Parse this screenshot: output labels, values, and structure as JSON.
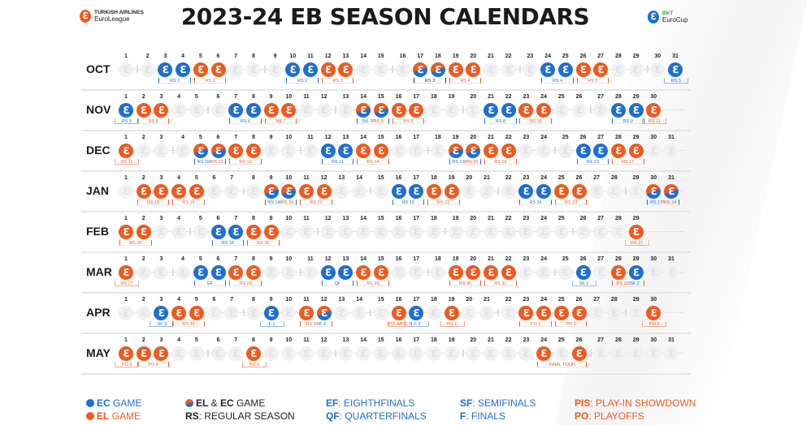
{
  "header": {
    "title": "2023-24 EB SEASON CALENDARS",
    "euroleague_logo": {
      "line1": "TURKISH AIRLINES",
      "line2": "EuroLeague"
    },
    "eurocup_logo": {
      "line1": "BKT",
      "line2": "EuroCup"
    }
  },
  "colors": {
    "ec": "#1f6fd0",
    "el": "#f05a1e",
    "empty": "#f1f1f3"
  },
  "months": [
    {
      "label": "OCT",
      "year": 2023,
      "month": 10,
      "days": 31,
      "blue": [
        3,
        4,
        10,
        11,
        24,
        25,
        31
      ],
      "orange": [
        5,
        6,
        12,
        13,
        19,
        20,
        26,
        27
      ],
      "both": [
        17,
        18
      ],
      "labels": [
        {
          "from": 3,
          "to": 4,
          "parts": [
            {
              "t": "RS 1",
              "c": "b"
            }
          ]
        },
        {
          "from": 5,
          "to": 6,
          "parts": [
            {
              "t": "RS 1",
              "c": "o"
            }
          ]
        },
        {
          "from": 10,
          "to": 11,
          "parts": [
            {
              "t": "RS 2",
              "c": "b"
            }
          ]
        },
        {
          "from": 12,
          "to": 13,
          "parts": [
            {
              "t": "RS 2",
              "c": "o"
            }
          ]
        },
        {
          "from": 17,
          "to": 18,
          "parts": [
            {
              "t": "RS 3",
              "c": "k"
            }
          ]
        },
        {
          "from": 19,
          "to": 20,
          "parts": [
            {
              "t": "RS 4",
              "c": "o"
            }
          ]
        },
        {
          "from": 24,
          "to": 25,
          "parts": [
            {
              "t": "RS 4",
              "c": "b"
            }
          ]
        },
        {
          "from": 26,
          "to": 27,
          "parts": [
            {
              "t": "RS 5",
              "c": "o"
            }
          ]
        },
        {
          "from": 31,
          "to": 31,
          "parts": [
            {
              "t": "RS 5",
              "c": "b"
            }
          ]
        }
      ]
    },
    {
      "label": "NOV",
      "year": 2023,
      "month": 11,
      "days": 30,
      "blue": [
        1,
        7,
        8,
        21,
        22,
        28,
        29
      ],
      "orange": [
        2,
        3,
        9,
        10,
        16,
        17,
        23,
        24,
        30
      ],
      "both": [
        14,
        15
      ],
      "labels": [
        {
          "from": 1,
          "to": 1,
          "parts": [
            {
              "t": "RS 5",
              "c": "b"
            }
          ]
        },
        {
          "from": 2,
          "to": 3,
          "parts": [
            {
              "t": "RS 6",
              "c": "o"
            }
          ]
        },
        {
          "from": 7,
          "to": 8,
          "parts": [
            {
              "t": "RS 6",
              "c": "b"
            }
          ]
        },
        {
          "from": 9,
          "to": 10,
          "parts": [
            {
              "t": "RS 7",
              "c": "o"
            }
          ]
        },
        {
          "from": 14,
          "to": 15,
          "parts": [
            {
              "t": "RS 7",
              "c": "b"
            },
            {
              "t": "RS 8",
              "c": "o"
            }
          ]
        },
        {
          "from": 16,
          "to": 17,
          "parts": [
            {
              "t": "RS 9",
              "c": "o"
            }
          ]
        },
        {
          "from": 21,
          "to": 22,
          "parts": [
            {
              "t": "RS 8",
              "c": "b"
            }
          ]
        },
        {
          "from": 23,
          "to": 24,
          "parts": [
            {
              "t": "RS 10",
              "c": "o"
            }
          ]
        },
        {
          "from": 28,
          "to": 29,
          "parts": [
            {
              "t": "RS 9",
              "c": "b"
            }
          ]
        },
        {
          "from": 30,
          "to": 30,
          "parts": [
            {
              "t": "RS 11",
              "c": "o"
            }
          ]
        }
      ]
    },
    {
      "label": "DEC",
      "year": 2023,
      "month": 12,
      "days": 31,
      "blue": [
        12,
        13,
        26,
        27
      ],
      "orange": [
        1,
        7,
        8,
        14,
        15,
        21,
        22,
        28,
        29
      ],
      "both": [
        5,
        6,
        19,
        20
      ],
      "labels": [
        {
          "from": 1,
          "to": 1,
          "parts": [
            {
              "t": "RS 11",
              "c": "o"
            }
          ]
        },
        {
          "from": 5,
          "to": 6,
          "parts": [
            {
              "t": "RS 10",
              "c": "b"
            },
            {
              "t": "RS 12",
              "c": "o"
            }
          ]
        },
        {
          "from": 7,
          "to": 8,
          "parts": [
            {
              "t": "RS 13",
              "c": "o"
            }
          ]
        },
        {
          "from": 12,
          "to": 13,
          "parts": [
            {
              "t": "RS 11",
              "c": "b"
            }
          ]
        },
        {
          "from": 14,
          "to": 15,
          "parts": [
            {
              "t": "RS 14",
              "c": "o"
            }
          ]
        },
        {
          "from": 19,
          "to": 20,
          "parts": [
            {
              "t": "RS 12",
              "c": "b"
            },
            {
              "t": "RS 15",
              "c": "o"
            }
          ]
        },
        {
          "from": 21,
          "to": 22,
          "parts": [
            {
              "t": "RS 16",
              "c": "o"
            }
          ]
        },
        {
          "from": 26,
          "to": 27,
          "parts": [
            {
              "t": "RS 13",
              "c": "b"
            }
          ]
        },
        {
          "from": 28,
          "to": 29,
          "parts": [
            {
              "t": "RS 17",
              "c": "o"
            }
          ]
        }
      ]
    },
    {
      "label": "JAN",
      "year": 2024,
      "month": 1,
      "days": 31,
      "blue": [
        16,
        17,
        23,
        24
      ],
      "orange": [
        2,
        3,
        4,
        5,
        11,
        12,
        18,
        19,
        25,
        26
      ],
      "both": [
        9,
        10,
        30,
        31
      ],
      "labels": [
        {
          "from": 2,
          "to": 3,
          "parts": [
            {
              "t": "RS 18",
              "c": "o"
            }
          ]
        },
        {
          "from": 4,
          "to": 5,
          "parts": [
            {
              "t": "RS 19",
              "c": "o"
            }
          ]
        },
        {
          "from": 9,
          "to": 10,
          "parts": [
            {
              "t": "RS 14",
              "c": "b"
            },
            {
              "t": "RS 20",
              "c": "o"
            }
          ]
        },
        {
          "from": 11,
          "to": 12,
          "parts": [
            {
              "t": "RS 21",
              "c": "o"
            }
          ]
        },
        {
          "from": 16,
          "to": 17,
          "parts": [
            {
              "t": "RS 15",
              "c": "b"
            }
          ]
        },
        {
          "from": 18,
          "to": 19,
          "parts": [
            {
              "t": "RS 22",
              "c": "o"
            }
          ]
        },
        {
          "from": 23,
          "to": 24,
          "parts": [
            {
              "t": "RS 16",
              "c": "b"
            }
          ]
        },
        {
          "from": 25,
          "to": 26,
          "parts": [
            {
              "t": "RS 23",
              "c": "o"
            }
          ]
        },
        {
          "from": 30,
          "to": 31,
          "parts": [
            {
              "t": "RS 17",
              "c": "b"
            },
            {
              "t": "RS 24",
              "c": "o"
            }
          ]
        }
      ]
    },
    {
      "label": "FEB",
      "year": 2024,
      "month": 2,
      "days": 29,
      "blue": [
        6,
        7
      ],
      "orange": [
        1,
        2,
        8,
        9,
        29
      ],
      "both": [],
      "labels": [
        {
          "from": 1,
          "to": 2,
          "parts": [
            {
              "t": "RS 25",
              "c": "o"
            }
          ]
        },
        {
          "from": 6,
          "to": 7,
          "parts": [
            {
              "t": "RS 18",
              "c": "b"
            }
          ]
        },
        {
          "from": 8,
          "to": 9,
          "parts": [
            {
              "t": "RS 26",
              "c": "o"
            }
          ]
        },
        {
          "from": 29,
          "to": 29,
          "parts": [
            {
              "t": "RS 27",
              "c": "o"
            }
          ]
        }
      ]
    },
    {
      "label": "MAR",
      "year": 2024,
      "month": 3,
      "days": 31,
      "blue": [
        5,
        6,
        12,
        13,
        26,
        29
      ],
      "orange": [
        1,
        7,
        8,
        14,
        15,
        19,
        20,
        21,
        22,
        28
      ],
      "both": [],
      "labels": [
        {
          "from": 1,
          "to": 1,
          "parts": [
            {
              "t": "RS 27",
              "c": "o"
            }
          ]
        },
        {
          "from": 5,
          "to": 6,
          "parts": [
            {
              "t": "EF",
              "c": "b"
            }
          ]
        },
        {
          "from": 7,
          "to": 8,
          "parts": [
            {
              "t": "RS 28",
              "c": "o"
            }
          ]
        },
        {
          "from": 12,
          "to": 13,
          "parts": [
            {
              "t": "QF",
              "c": "b"
            }
          ]
        },
        {
          "from": 14,
          "to": 15,
          "parts": [
            {
              "t": "RS 29",
              "c": "o"
            }
          ]
        },
        {
          "from": 19,
          "to": 20,
          "parts": [
            {
              "t": "RS 30",
              "c": "o"
            }
          ]
        },
        {
          "from": 21,
          "to": 22,
          "parts": [
            {
              "t": "RS 31",
              "c": "o"
            }
          ]
        },
        {
          "from": 26,
          "to": 26,
          "parts": [
            {
              "t": "SF 1",
              "c": "b"
            }
          ]
        },
        {
          "from": 28,
          "to": 29,
          "parts": [
            {
              "t": "RS 32",
              "c": "o"
            },
            {
              "t": "SF 2",
              "c": "b"
            }
          ]
        }
      ]
    },
    {
      "label": "APR",
      "year": 2024,
      "month": 4,
      "days": 30,
      "blue": [
        3,
        9,
        17
      ],
      "orange": [
        4,
        5,
        11,
        16,
        19,
        23,
        24,
        25,
        26,
        30
      ],
      "both": [
        12
      ],
      "labels": [
        {
          "from": 3,
          "to": 3,
          "parts": [
            {
              "t": "SF 3",
              "c": "b"
            }
          ]
        },
        {
          "from": 4,
          "to": 5,
          "parts": [
            {
              "t": "RS 33",
              "c": "o"
            }
          ]
        },
        {
          "from": 9,
          "to": 9,
          "parts": [
            {
              "t": "F 1",
              "c": "b"
            }
          ]
        },
        {
          "from": 11,
          "to": 12,
          "parts": [
            {
              "t": "RS 34",
              "c": "o"
            },
            {
              "t": "F 2",
              "c": "b"
            }
          ]
        },
        {
          "from": 16,
          "to": 16,
          "parts": [
            {
              "t": "PIS A",
              "c": "o"
            },
            {
              "t": "PIS B",
              "c": "o"
            }
          ]
        },
        {
          "from": 17,
          "to": 17,
          "parts": [
            {
              "t": "F 3",
              "c": "b"
            }
          ]
        },
        {
          "from": 19,
          "to": 19,
          "parts": [
            {
              "t": "PIS C",
              "c": "o"
            }
          ]
        },
        {
          "from": 23,
          "to": 24,
          "parts": [
            {
              "t": "PO 1",
              "c": "o"
            }
          ]
        },
        {
          "from": 25,
          "to": 26,
          "parts": [
            {
              "t": "PO 2",
              "c": "o"
            }
          ]
        },
        {
          "from": 30,
          "to": 30,
          "parts": [
            {
              "t": "PO 3",
              "c": "o"
            }
          ]
        }
      ]
    },
    {
      "label": "MAY",
      "year": 2024,
      "month": 5,
      "days": 31,
      "blue": [],
      "orange": [
        1,
        2,
        3,
        8,
        24,
        26
      ],
      "both": [],
      "labels": [
        {
          "from": 1,
          "to": 1,
          "parts": [
            {
              "t": "PO 3",
              "c": "o"
            }
          ]
        },
        {
          "from": 2,
          "to": 3,
          "parts": [
            {
              "t": "PO 4",
              "c": "o"
            }
          ]
        },
        {
          "from": 8,
          "to": 8,
          "parts": [
            {
              "t": "PO 5",
              "c": "o"
            }
          ]
        },
        {
          "from": 24,
          "to": 26,
          "parts": [
            {
              "t": "FINAL FOUR",
              "c": "o"
            }
          ]
        }
      ]
    }
  ],
  "legend": {
    "ec_game": {
      "key": "EC",
      "text": " GAME"
    },
    "el_game": {
      "key": "EL",
      "text": " GAME"
    },
    "both_game": {
      "key1": "EL",
      "amp": " & ",
      "key2": "EC",
      "text": " GAME"
    },
    "rs": {
      "key": "RS",
      "text": ": REGULAR SEASON"
    },
    "ef": {
      "key": "EF",
      "text": ": EIGHTHFINALS"
    },
    "qf": {
      "key": "QF",
      "text": ": QUARTERFINALS"
    },
    "sf": {
      "key": "SF",
      "text": ": SEMIFINALS"
    },
    "f": {
      "key": "F",
      "text": ": FINALS"
    },
    "pis": {
      "key": "PIS",
      "text": ": PLAY-IN SHOWDOWN"
    },
    "po": {
      "key": "PO",
      "text": ": PLAYOFFS"
    }
  }
}
